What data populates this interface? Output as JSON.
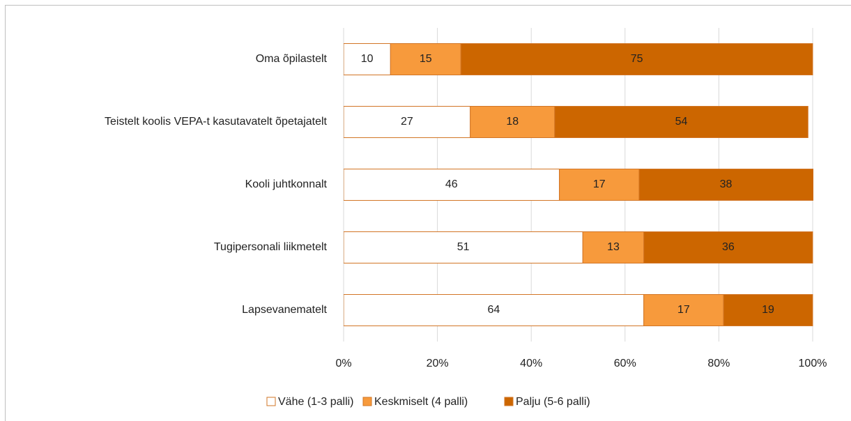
{
  "chart_data": {
    "type": "stacked_bar_horizontal",
    "categories": [
      "Oma õpilastelt",
      "Teistelt koolis VEPA-t kasutavatelt õpetajatelt",
      "Kooli juhtkonnalt",
      "Tugipersonali liikmetelt",
      "Lapsevanematelt"
    ],
    "series": [
      {
        "name": "Vähe (1-3 palli)",
        "color": "#ffffff",
        "values": [
          10,
          27,
          46,
          51,
          64
        ]
      },
      {
        "name": "Keskmiselt (4 palli)",
        "color": "#f79a3c",
        "values": [
          15,
          18,
          17,
          13,
          17
        ]
      },
      {
        "name": "Palju (5-6 palli)",
        "color": "#cc6600",
        "values": [
          75,
          54,
          38,
          36,
          19
        ]
      }
    ],
    "xlim": [
      0,
      100
    ],
    "xticks": [
      {
        "value": 0,
        "label": "0%"
      },
      {
        "value": 20,
        "label": "20%"
      },
      {
        "value": 40,
        "label": "40%"
      },
      {
        "value": 60,
        "label": "60%"
      },
      {
        "value": 80,
        "label": "80%"
      },
      {
        "value": 100,
        "label": "100%"
      }
    ],
    "grid": true,
    "legend": "bottom"
  }
}
